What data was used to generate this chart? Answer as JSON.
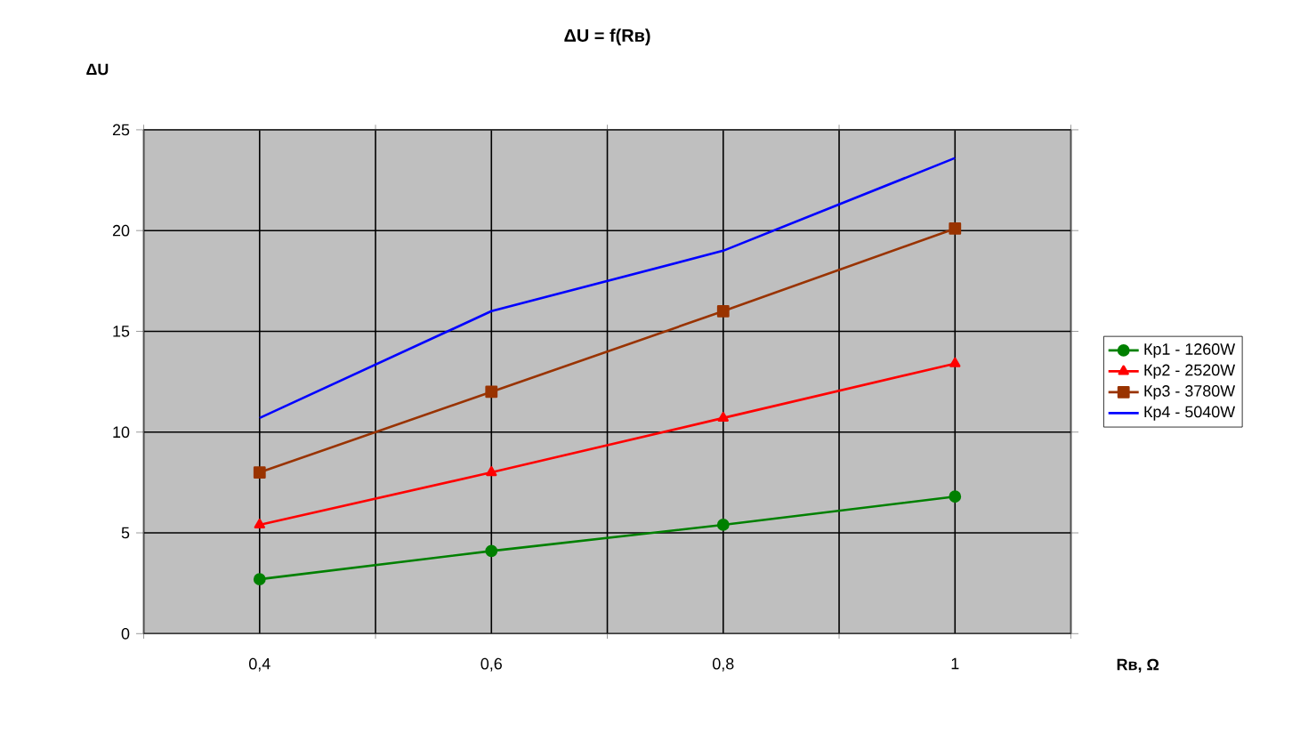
{
  "chart_data": {
    "type": "line",
    "title": "ΔU = f(Rв)",
    "ylabel": "ΔU",
    "xlabel": "Rв, Ω",
    "categories": [
      "0,4",
      "0,6",
      "0,8",
      "1"
    ],
    "series": [
      {
        "name": "Кр1 - 1260W",
        "color": "#008000",
        "marker": "circle",
        "values": [
          2.7,
          4.1,
          5.4,
          6.8
        ]
      },
      {
        "name": "Кр2 - 2520W",
        "color": "#ff0000",
        "marker": "triangle",
        "values": [
          5.4,
          8,
          10.7,
          13.4
        ]
      },
      {
        "name": "Кр3 - 3780W",
        "color": "#993300",
        "marker": "square",
        "values": [
          8,
          12,
          16,
          20.1
        ]
      },
      {
        "name": "Кр4 - 5040W",
        "color": "#0000ff",
        "marker": "none",
        "values": [
          10.7,
          16,
          19,
          23.6
        ]
      }
    ],
    "ylim": [
      0,
      25
    ],
    "yticks": [
      0,
      5,
      10,
      15,
      20,
      25
    ],
    "grid": true,
    "legend": "right"
  }
}
